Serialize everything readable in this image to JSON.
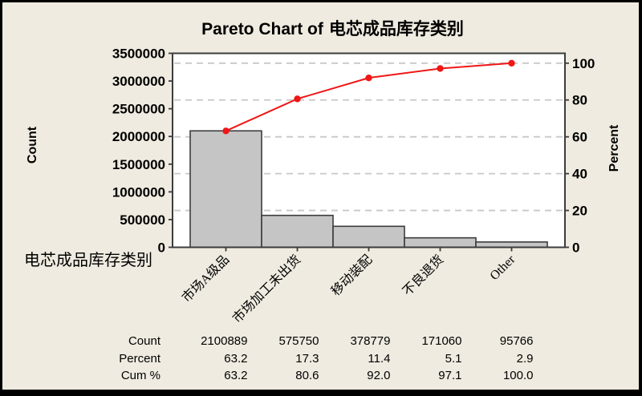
{
  "window": {
    "bg": "#EFEBE0",
    "border_color": "#000000"
  },
  "title": {
    "prefix": "Pareto Chart of",
    "subject": "电芯成品库存类别"
  },
  "axes": {
    "left_label": "Count",
    "right_label": "Percent",
    "x_label": "电芯成品库存类别"
  },
  "chart_data": {
    "type": "pareto (bar + cumulative percent line)",
    "title": "Pareto Chart of 电芯成品库存类别",
    "categories": [
      "市场A级品",
      "市场加工未出货",
      "移动装配",
      "不良退货",
      "Other"
    ],
    "series": [
      {
        "name": "Count",
        "type": "bar",
        "values": [
          2100889,
          575750,
          378779,
          171060,
          95766
        ]
      },
      {
        "name": "Cum %",
        "type": "line",
        "values": [
          63.2,
          80.6,
          92.0,
          97.1,
          100.0
        ]
      }
    ],
    "percents": [
      63.2,
      17.3,
      11.4,
      5.1,
      2.9
    ],
    "count_axis": {
      "label": "Count",
      "min": 0,
      "max": 3500000,
      "step": 500000
    },
    "percent_axis": {
      "label": "Percent",
      "min": 0,
      "max": 100,
      "step": 20
    },
    "grid": "dashed horizontal gridlines at percent-axis ticks",
    "legend": "none",
    "colors": {
      "bar_fill": "#C5C5C5",
      "bar_stroke": "#3C3C3C",
      "line": "#F01616",
      "gridline": "#C8C8C8",
      "frame": "#3C3C3C",
      "plot_bg": "#FFFFFF",
      "text": "#000000"
    }
  },
  "table": {
    "rows": [
      {
        "label": "Count",
        "values": [
          "2100889",
          "575750",
          "378779",
          "171060",
          "95766"
        ]
      },
      {
        "label": "Percent",
        "values": [
          "63.2",
          "17.3",
          "11.4",
          "5.1",
          "2.9"
        ]
      },
      {
        "label": "Cum %",
        "values": [
          "63.2",
          "80.6",
          "92.0",
          "97.1",
          "100.0"
        ]
      }
    ]
  }
}
